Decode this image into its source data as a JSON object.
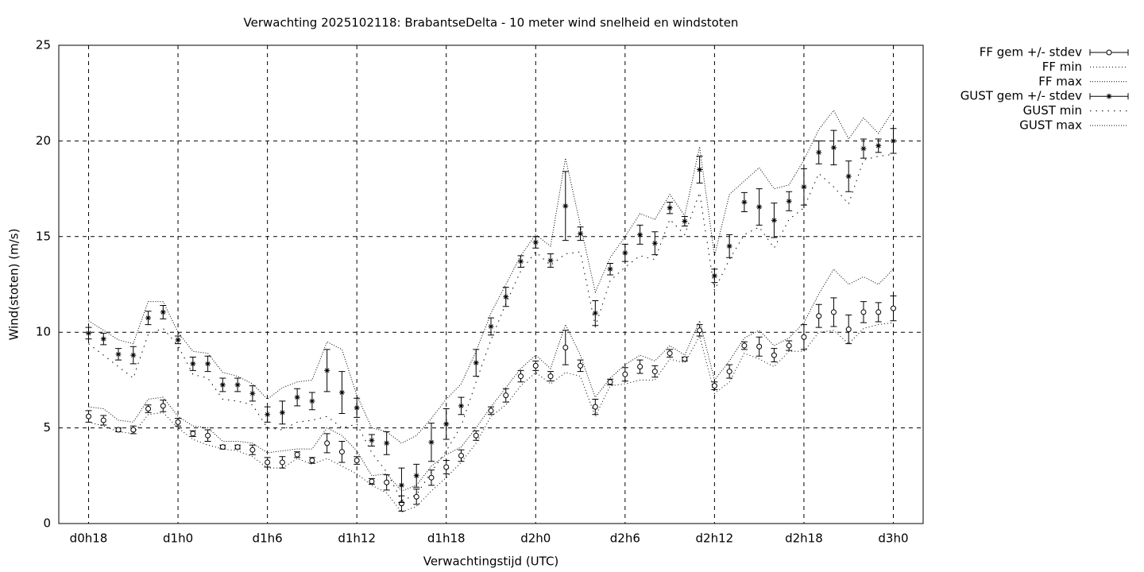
{
  "chart_data": {
    "type": "errorbar-line",
    "title": "Verwachting 2025102118: BrabantseDelta - 10 meter wind snelheid en windstoten",
    "x_label": "Verwachtingstijd (UTC)",
    "y_label": "Wind(stoten) (m/s)",
    "xlim": [
      16,
      74
    ],
    "ylim": [
      0,
      25
    ],
    "xticks": [
      {
        "value": 18,
        "label": "d0h18"
      },
      {
        "value": 24,
        "label": "d1h0"
      },
      {
        "value": 30,
        "label": "d1h6"
      },
      {
        "value": 36,
        "label": "d1h12"
      },
      {
        "value": 42,
        "label": "d1h18"
      },
      {
        "value": 48,
        "label": "d2h0"
      },
      {
        "value": 54,
        "label": "d2h6"
      },
      {
        "value": 60,
        "label": "d2h12"
      },
      {
        "value": 66,
        "label": "d2h18"
      },
      {
        "value": 72,
        "label": "d3h0"
      }
    ],
    "yticks": [
      0,
      5,
      10,
      15,
      20,
      25
    ],
    "grid": true,
    "legend": "outside-top-right",
    "x": [
      18,
      19,
      20,
      21,
      22,
      23,
      24,
      25,
      26,
      27,
      28,
      29,
      30,
      31,
      32,
      33,
      34,
      35,
      36,
      37,
      38,
      39,
      40,
      41,
      42,
      43,
      44,
      45,
      46,
      47,
      48,
      49,
      50,
      51,
      52,
      53,
      54,
      55,
      56,
      57,
      58,
      59,
      60,
      61,
      62,
      63,
      64,
      65,
      66,
      67,
      68,
      69,
      70,
      71,
      72
    ],
    "series": [
      {
        "name": "FF gem +/- stdev",
        "style": "errorbars",
        "marker": "circle",
        "color": "#000000",
        "values": [
          5.6,
          5.4,
          4.9,
          4.9,
          6.0,
          6.15,
          5.3,
          4.7,
          4.6,
          4.0,
          4.0,
          3.85,
          3.2,
          3.2,
          3.6,
          3.3,
          4.2,
          3.75,
          3.3,
          2.2,
          2.15,
          1.05,
          1.4,
          2.4,
          2.95,
          3.55,
          4.6,
          5.9,
          6.7,
          7.7,
          8.25,
          7.7,
          9.2,
          8.25,
          6.1,
          7.4,
          7.8,
          8.2,
          7.95,
          8.9,
          8.6,
          10.1,
          7.2,
          7.95,
          9.3,
          9.25,
          8.8,
          9.3,
          9.75,
          10.85,
          11.05,
          10.15,
          11.05,
          11.05,
          11.25
        ],
        "errors": [
          0.3,
          0.25,
          0.1,
          0.2,
          0.2,
          0.3,
          0.2,
          0.15,
          0.3,
          0.1,
          0.1,
          0.25,
          0.25,
          0.3,
          0.15,
          0.15,
          0.5,
          0.55,
          0.2,
          0.15,
          0.4,
          0.4,
          0.4,
          0.4,
          0.35,
          0.3,
          0.25,
          0.2,
          0.35,
          0.3,
          0.25,
          0.25,
          0.9,
          0.3,
          0.4,
          0.15,
          0.35,
          0.35,
          0.3,
          0.2,
          0.1,
          0.3,
          0.2,
          0.35,
          0.2,
          0.5,
          0.35,
          0.25,
          0.65,
          0.6,
          0.75,
          0.75,
          0.55,
          0.5,
          0.65
        ]
      },
      {
        "name": "FF min",
        "style": "line",
        "dash": "1,3",
        "color": "#000000",
        "values": [
          5.3,
          5.1,
          4.8,
          4.7,
          5.7,
          5.8,
          5.0,
          4.4,
          4.1,
          3.9,
          3.8,
          3.5,
          2.9,
          2.9,
          3.4,
          3.1,
          3.4,
          3.0,
          2.6,
          2.0,
          1.6,
          0.6,
          0.9,
          1.7,
          2.4,
          3.2,
          4.2,
          5.6,
          6.2,
          7.2,
          7.9,
          7.3,
          7.9,
          7.7,
          5.6,
          7.2,
          7.3,
          7.5,
          7.5,
          8.6,
          8.4,
          9.8,
          6.8,
          7.4,
          8.9,
          8.6,
          8.2,
          9.0,
          9.0,
          10.0,
          10.1,
          9.4,
          10.2,
          10.4,
          10.5
        ]
      },
      {
        "name": "FF max",
        "style": "line",
        "dash": "1,2",
        "color": "#000000",
        "values": [
          6.1,
          6.0,
          5.4,
          5.3,
          6.5,
          6.6,
          5.6,
          5.1,
          5.0,
          4.3,
          4.3,
          4.2,
          3.7,
          3.8,
          3.9,
          3.9,
          5.0,
          4.6,
          3.8,
          2.5,
          2.6,
          1.7,
          2.0,
          3.0,
          3.6,
          4.0,
          5.0,
          6.1,
          7.1,
          8.1,
          8.8,
          8.1,
          10.4,
          8.8,
          6.6,
          7.6,
          8.3,
          8.8,
          8.5,
          9.3,
          8.8,
          10.6,
          7.5,
          8.5,
          9.7,
          10.1,
          9.3,
          9.7,
          10.5,
          12.0,
          13.3,
          12.5,
          12.9,
          12.5,
          13.3
        ]
      },
      {
        "name": "GUST gem +/- stdev",
        "style": "errorbars",
        "marker": "star",
        "color": "#000000",
        "values": [
          9.95,
          9.65,
          8.85,
          8.8,
          10.75,
          11.05,
          9.6,
          8.35,
          8.35,
          7.25,
          7.25,
          6.8,
          5.7,
          5.8,
          6.6,
          6.4,
          8.0,
          6.85,
          6.05,
          4.35,
          4.2,
          2.0,
          2.5,
          4.25,
          5.2,
          6.15,
          8.4,
          10.3,
          11.85,
          13.7,
          14.7,
          13.75,
          16.6,
          15.15,
          11.0,
          13.3,
          14.15,
          15.1,
          14.65,
          16.5,
          15.8,
          18.5,
          12.95,
          14.5,
          16.8,
          16.55,
          15.85,
          16.85,
          17.6,
          19.4,
          19.65,
          18.15,
          19.6,
          19.75,
          20.0
        ],
        "errors": [
          0.3,
          0.3,
          0.3,
          0.45,
          0.35,
          0.35,
          0.2,
          0.35,
          0.4,
          0.35,
          0.35,
          0.4,
          0.4,
          0.6,
          0.45,
          0.45,
          1.1,
          1.1,
          0.5,
          0.3,
          0.6,
          0.9,
          0.6,
          1.0,
          0.8,
          0.45,
          0.7,
          0.45,
          0.5,
          0.3,
          0.3,
          0.35,
          1.8,
          0.35,
          0.65,
          0.3,
          0.45,
          0.5,
          0.6,
          0.3,
          0.25,
          0.7,
          0.35,
          0.6,
          0.5,
          0.95,
          0.9,
          0.5,
          0.95,
          0.6,
          0.9,
          0.8,
          0.5,
          0.35,
          0.65
        ]
      },
      {
        "name": "GUST min",
        "style": "line",
        "dash": "1.5,6",
        "color": "#000000",
        "values": [
          9.4,
          8.8,
          8.2,
          7.6,
          9.9,
          10.2,
          9.3,
          7.8,
          7.6,
          6.5,
          6.4,
          6.2,
          5.0,
          4.9,
          5.3,
          5.4,
          5.6,
          5.0,
          5.2,
          3.7,
          2.7,
          1.2,
          1.5,
          2.7,
          3.8,
          5.1,
          7.4,
          9.6,
          11.5,
          13.2,
          14.2,
          13.5,
          14.1,
          14.2,
          10.3,
          12.7,
          13.4,
          14.0,
          13.8,
          15.9,
          15.1,
          17.3,
          12.2,
          13.8,
          15.1,
          15.5,
          14.4,
          15.9,
          16.5,
          18.3,
          17.6,
          16.7,
          19.0,
          19.2,
          19.3
        ]
      },
      {
        "name": "GUST max",
        "style": "line",
        "dash": "1,2",
        "color": "#000000",
        "values": [
          10.6,
          10.1,
          9.6,
          9.4,
          11.6,
          11.6,
          10.0,
          9.0,
          8.9,
          7.9,
          7.7,
          7.3,
          6.5,
          7.1,
          7.4,
          7.5,
          9.5,
          9.1,
          6.7,
          5.0,
          4.8,
          4.2,
          4.6,
          5.5,
          6.5,
          7.3,
          9.0,
          11.0,
          12.5,
          14.0,
          15.1,
          14.5,
          19.1,
          15.6,
          12.1,
          13.9,
          15.0,
          16.2,
          15.9,
          17.2,
          16.1,
          19.7,
          14.0,
          17.2,
          17.9,
          18.6,
          17.5,
          17.7,
          19.0,
          20.6,
          21.6,
          20.1,
          21.2,
          20.4,
          21.6
        ]
      }
    ]
  }
}
